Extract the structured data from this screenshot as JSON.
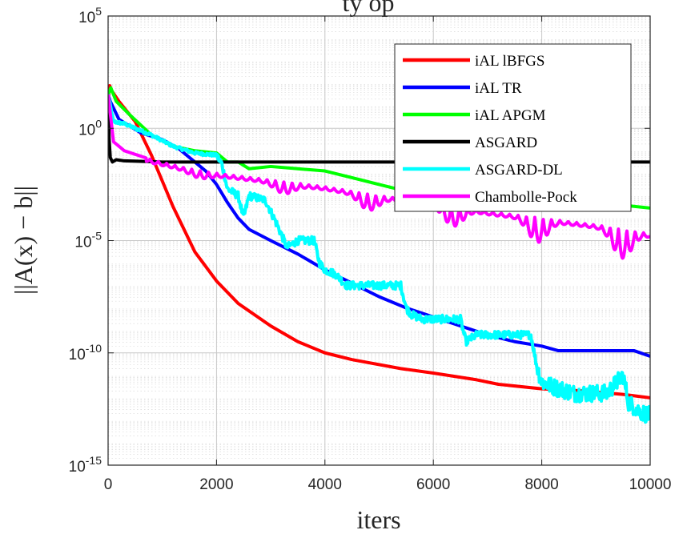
{
  "chart_data": {
    "type": "line",
    "title": "ty op",
    "xlabel": "iters",
    "ylabel": "||A(x) − b||",
    "xlim": [
      0,
      10000
    ],
    "ylim_exponents": [
      -15,
      5
    ],
    "yscale": "log",
    "grid": true,
    "minor_grid": true,
    "legend_position": "top-right",
    "x_ticks": [
      {
        "value": 0,
        "label": "0"
      },
      {
        "value": 2000,
        "label": "2000"
      },
      {
        "value": 4000,
        "label": "4000"
      },
      {
        "value": 6000,
        "label": "6000"
      },
      {
        "value": 8000,
        "label": "8000"
      },
      {
        "value": 10000,
        "label": "10000"
      }
    ],
    "y_ticks": [
      {
        "value": 5,
        "base": "10",
        "exp": "5"
      },
      {
        "value": 0,
        "base": "10",
        "exp": "0"
      },
      {
        "value": -5,
        "base": "10",
        "exp": "-5"
      },
      {
        "value": -10,
        "base": "10",
        "exp": "-10"
      },
      {
        "value": -15,
        "base": "10",
        "exp": "-15"
      }
    ],
    "series": [
      {
        "name": "iAL lBFGS",
        "color": "#ff0000",
        "width": 4,
        "noise": 0,
        "points": [
          [
            0,
            1.2
          ],
          [
            30,
            1.9
          ],
          [
            60,
            1.7
          ],
          [
            200,
            1.2
          ],
          [
            500,
            0.3
          ],
          [
            800,
            -1.2
          ],
          [
            1200,
            -3.5
          ],
          [
            1600,
            -5.5
          ],
          [
            2000,
            -6.8
          ],
          [
            2400,
            -7.8
          ],
          [
            3000,
            -8.8
          ],
          [
            3500,
            -9.5
          ],
          [
            4000,
            -10.0
          ],
          [
            4500,
            -10.3
          ],
          [
            5400,
            -10.7
          ],
          [
            6000,
            -10.9
          ],
          [
            6800,
            -11.2
          ],
          [
            7200,
            -11.4
          ],
          [
            8000,
            -11.6
          ],
          [
            8800,
            -11.7
          ],
          [
            9500,
            -11.85
          ],
          [
            10000,
            -12.0
          ]
        ]
      },
      {
        "name": "iAL TR",
        "color": "#0000ff",
        "width": 4,
        "noise": 0,
        "points": [
          [
            0,
            1.5
          ],
          [
            40,
            1.2
          ],
          [
            200,
            0.4
          ],
          [
            600,
            -0.2
          ],
          [
            1000,
            -0.5
          ],
          [
            1300,
            -0.9
          ],
          [
            1600,
            -1.5
          ],
          [
            1800,
            -1.9
          ],
          [
            2000,
            -2.5
          ],
          [
            2200,
            -3.3
          ],
          [
            2400,
            -4.0
          ],
          [
            2600,
            -4.5
          ],
          [
            3000,
            -5.0
          ],
          [
            3500,
            -5.6
          ],
          [
            4000,
            -6.3
          ],
          [
            4500,
            -6.9
          ],
          [
            5000,
            -7.5
          ],
          [
            5500,
            -8.0
          ],
          [
            6000,
            -8.4
          ],
          [
            6500,
            -8.8
          ],
          [
            7000,
            -9.2
          ],
          [
            7500,
            -9.5
          ],
          [
            8000,
            -9.7
          ],
          [
            8300,
            -9.9
          ],
          [
            9700,
            -9.9
          ],
          [
            10000,
            -10.15
          ]
        ]
      },
      {
        "name": "iAL APGM",
        "color": "#00ff00",
        "width": 4,
        "noise": 0,
        "points": [
          [
            0,
            1.5
          ],
          [
            50,
            1.8
          ],
          [
            150,
            1.2
          ],
          [
            400,
            0.6
          ],
          [
            800,
            -0.3
          ],
          [
            1200,
            -0.8
          ],
          [
            1600,
            -1.0
          ],
          [
            2000,
            -1.1
          ],
          [
            2200,
            -1.5
          ],
          [
            2400,
            -1.5
          ],
          [
            2600,
            -1.8
          ],
          [
            3000,
            -1.7
          ],
          [
            3500,
            -1.8
          ],
          [
            4000,
            -1.9
          ],
          [
            4500,
            -2.2
          ],
          [
            5000,
            -2.5
          ],
          [
            5500,
            -2.8
          ],
          [
            6000,
            -3.0
          ],
          [
            7000,
            -3.1
          ],
          [
            8000,
            -3.2
          ],
          [
            9000,
            -3.3
          ],
          [
            10000,
            -3.55
          ]
        ]
      },
      {
        "name": "ASGARD",
        "color": "#000000",
        "width": 4,
        "noise": 0,
        "points": [
          [
            0,
            1.2
          ],
          [
            20,
            -0.5
          ],
          [
            40,
            -1.3
          ],
          [
            80,
            -1.5
          ],
          [
            150,
            -1.4
          ],
          [
            300,
            -1.45
          ],
          [
            1000,
            -1.5
          ],
          [
            3000,
            -1.5
          ],
          [
            6000,
            -1.5
          ],
          [
            10000,
            -1.5
          ]
        ]
      },
      {
        "name": "ASGARD-DL",
        "color": "#00ffff",
        "width": 4,
        "noise": 0.35,
        "points": [
          [
            0,
            1.5
          ],
          [
            100,
            0.3
          ],
          [
            300,
            0.2
          ],
          [
            800,
            -0.3
          ],
          [
            1200,
            -0.8
          ],
          [
            1600,
            -1.1
          ],
          [
            2000,
            -1.2
          ],
          [
            2100,
            -1.6
          ],
          [
            2200,
            -2.7
          ],
          [
            2400,
            -3.0
          ],
          [
            2500,
            -4.0
          ],
          [
            2600,
            -3.0
          ],
          [
            2900,
            -3.2
          ],
          [
            3100,
            -4.2
          ],
          [
            3300,
            -5.3
          ],
          [
            3500,
            -5.0
          ],
          [
            3800,
            -5.0
          ],
          [
            3900,
            -6.0
          ],
          [
            4000,
            -6.3
          ],
          [
            4200,
            -6.5
          ],
          [
            4400,
            -7.0
          ],
          [
            4800,
            -7.0
          ],
          [
            5400,
            -7.0
          ],
          [
            5500,
            -8.0
          ],
          [
            5600,
            -8.3
          ],
          [
            5800,
            -8.5
          ],
          [
            6200,
            -8.5
          ],
          [
            6500,
            -8.5
          ],
          [
            6600,
            -9.5
          ],
          [
            6800,
            -9.2
          ],
          [
            7400,
            -9.2
          ],
          [
            7800,
            -9.2
          ],
          [
            7900,
            -10.5
          ],
          [
            8000,
            -11.3
          ],
          [
            8200,
            -11.5
          ],
          [
            8600,
            -11.8
          ],
          [
            9200,
            -11.8
          ],
          [
            9500,
            -11.0
          ],
          [
            9600,
            -12.2
          ],
          [
            9800,
            -12.6
          ],
          [
            10000,
            -12.8
          ]
        ]
      },
      {
        "name": "Chambolle-Pock",
        "color": "#ff00ff",
        "width": 4,
        "noise": 0,
        "oscillation": true,
        "points": [
          [
            0,
            1.5
          ],
          [
            100,
            -0.6
          ],
          [
            300,
            -1.0
          ],
          [
            800,
            -1.4
          ],
          [
            1500,
            -1.8
          ],
          [
            2000,
            -2.0
          ],
          [
            3000,
            -2.3
          ],
          [
            4000,
            -2.6
          ],
          [
            5000,
            -3.0
          ],
          [
            6000,
            -3.3
          ],
          [
            7000,
            -3.7
          ],
          [
            8000,
            -4.0
          ],
          [
            9000,
            -4.3
          ],
          [
            10000,
            -4.7
          ]
        ]
      }
    ]
  }
}
